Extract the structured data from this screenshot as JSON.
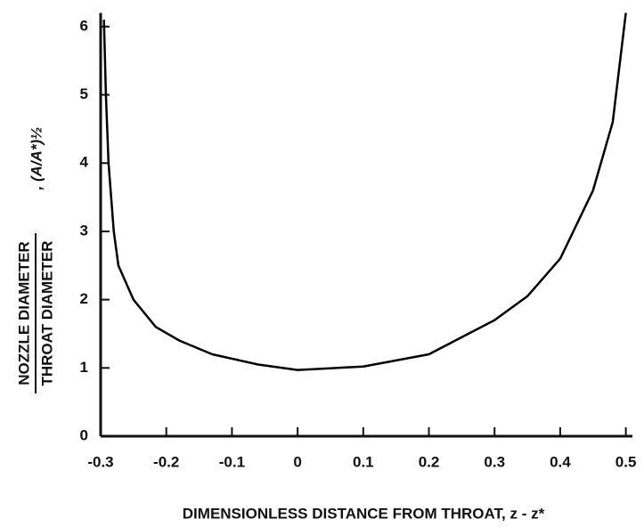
{
  "chart_data": {
    "type": "line",
    "ylabel_numerator": "NOZZLE DIAMETER",
    "ylabel_denominator": "THROAT DIAMETER",
    "ylabel_formula": ", (A/A*)½",
    "xlabel": "DIMENSIONLESS DISTANCE FROM THROAT, z - z*",
    "x": [
      -0.295,
      -0.292,
      -0.288,
      -0.28,
      -0.273,
      -0.25,
      -0.216,
      -0.18,
      -0.13,
      -0.06,
      0,
      0.1,
      0.2,
      0.3,
      0.35,
      0.4,
      0.45,
      0.48,
      0.5
    ],
    "values": [
      6.1,
      5,
      4,
      3,
      2.5,
      2,
      1.6,
      1.4,
      1.2,
      1.05,
      0.97,
      1.02,
      1.2,
      1.7,
      2.05,
      2.6,
      3.6,
      4.6,
      6.2
    ],
    "color": "#000000",
    "xlim": [
      -0.3,
      0.51
    ],
    "xticks": [
      -0.3,
      -0.2,
      -0.1,
      0,
      0.1,
      0.2,
      0.3,
      0.4,
      0.5
    ],
    "ylim": [
      0,
      6.2
    ],
    "yticks": [
      0,
      1,
      2,
      3,
      4,
      5,
      6
    ],
    "grid": false
  }
}
